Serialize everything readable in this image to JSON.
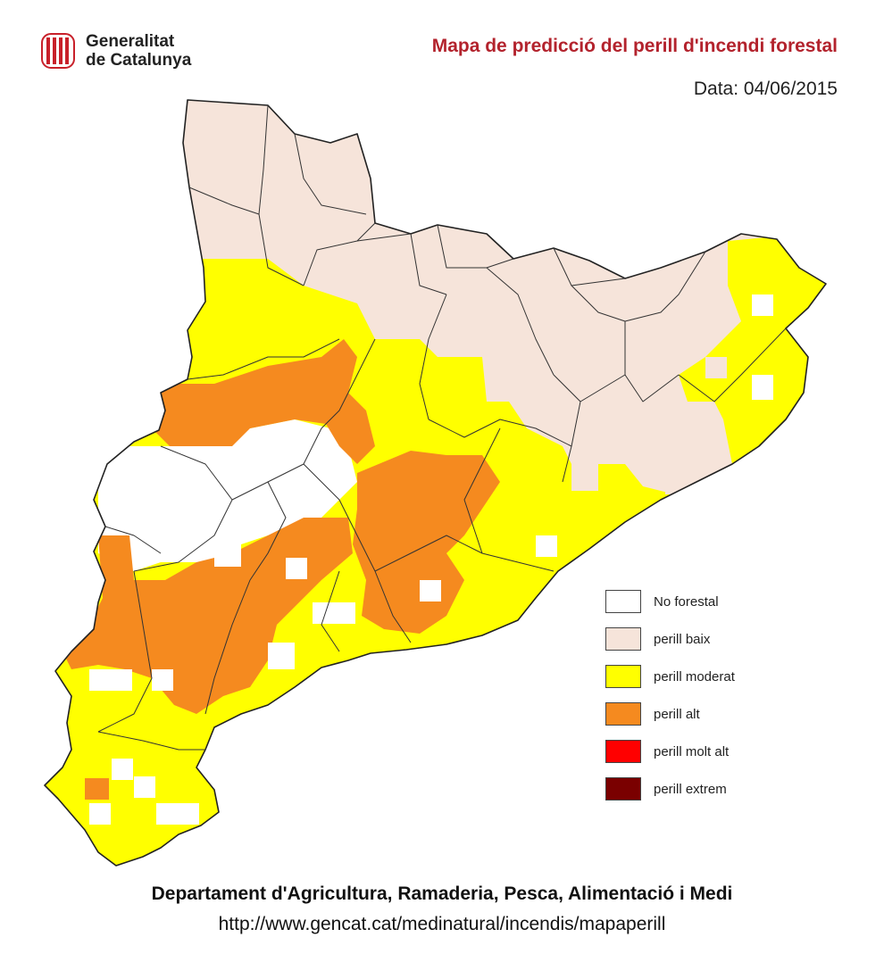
{
  "header": {
    "logo_line1": "Generalitat",
    "logo_line2": "de Catalunya",
    "title": "Mapa de predicció del perill d'incendi forestal",
    "date_label": "Data: 04/06/2015"
  },
  "colors": {
    "no_forestal": "#ffffff",
    "perill_baix": "#f6e4da",
    "perill_moderat": "#ffff00",
    "perill_alt": "#f58a1f",
    "perill_molt_alt": "#ff0000",
    "perill_extrem": "#7a0000",
    "title": "#b3232d",
    "logo": "#c8202a"
  },
  "legend": {
    "items": [
      {
        "label": "No forestal",
        "color": "#ffffff"
      },
      {
        "label": "perill baix",
        "color": "#f6e4da"
      },
      {
        "label": "perill moderat",
        "color": "#ffff00"
      },
      {
        "label": "perill alt",
        "color": "#f58a1f"
      },
      {
        "label": "perill molt alt",
        "color": "#ff0000"
      },
      {
        "label": "perill extrem",
        "color": "#7a0000"
      }
    ]
  },
  "footer": {
    "line1": "Departament d'Agricultura, Ramaderia, Pesca, Alimentació i Medi",
    "line2": "http://www.gencat.cat/medinatural/incendis/mapaperill"
  }
}
